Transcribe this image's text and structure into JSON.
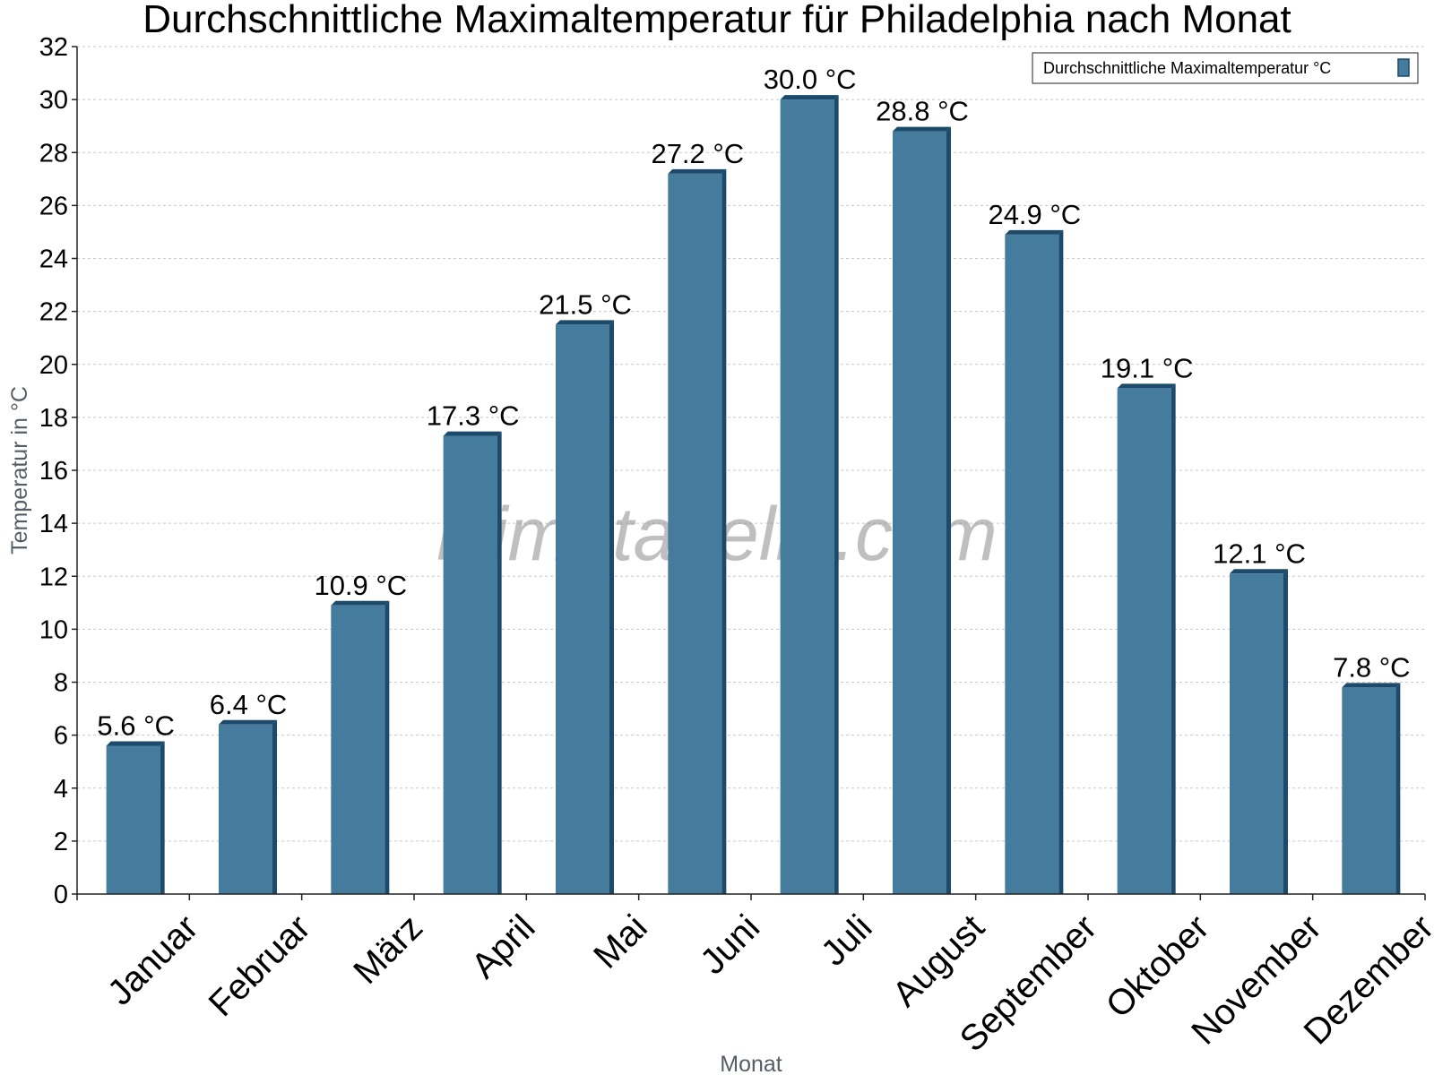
{
  "chart_data": {
    "type": "bar",
    "title": "Durchschnittliche Maximaltemperatur für Philadelphia nach Monat",
    "xlabel": "Monat",
    "ylabel": "Temperatur in °C",
    "categories": [
      "Januar",
      "Februar",
      "März",
      "April",
      "Mai",
      "Juni",
      "Juli",
      "August",
      "September",
      "Oktober",
      "November",
      "Dezember"
    ],
    "series": [
      {
        "name": "Durchschnittliche Maximaltemperatur °C",
        "values": [
          5.6,
          6.4,
          10.9,
          17.3,
          21.5,
          27.2,
          30.0,
          28.8,
          24.9,
          19.1,
          12.1,
          7.8
        ],
        "color": "#457b9d",
        "edge_color": "#1b4a6b"
      }
    ],
    "data_labels": [
      "5.6 °C",
      "6.4 °C",
      "10.9 °C",
      "17.3 °C",
      "21.5 °C",
      "27.2 °C",
      "30.0 °C",
      "28.8 °C",
      "24.9 °C",
      "19.1 °C",
      "12.1 °C",
      "7.8 °C"
    ],
    "y_ticks": [
      "0",
      "2",
      "4",
      "6",
      "8",
      "10",
      "12",
      "14",
      "16",
      "18",
      "20",
      "22",
      "24",
      "26",
      "28",
      "30",
      "32"
    ],
    "ylim": [
      0,
      32
    ],
    "grid": true,
    "legend_position": "top-right",
    "watermark": "klimatabelle.com"
  }
}
